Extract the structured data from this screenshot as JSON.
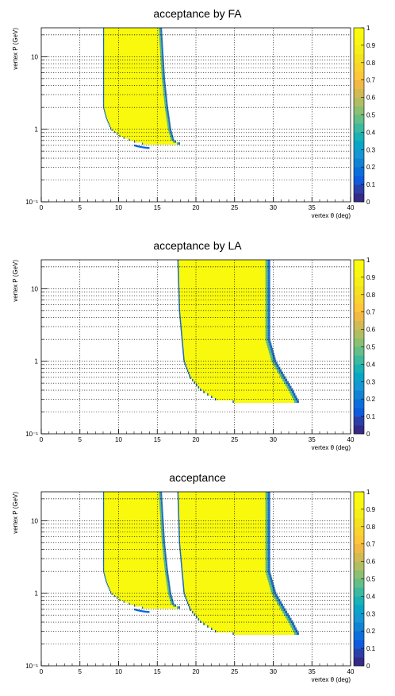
{
  "chart_data": [
    {
      "type": "heatmap",
      "title": "acceptance by FA",
      "xlabel": "vertex θ (deg)",
      "ylabel": "vertex P (GeV)",
      "xlim": [
        0,
        40
      ],
      "ylim": [
        0.1,
        25
      ],
      "yscale": "log",
      "x_ticks": [
        "0",
        "5",
        "10",
        "15",
        "20",
        "25",
        "30",
        "35",
        "40"
      ],
      "y_ticks": [
        "10⁻¹",
        "1",
        "10"
      ],
      "grid": true,
      "colorbar": {
        "min": 0,
        "max": 1,
        "ticks": [
          "0",
          "0.1",
          "0.2",
          "0.3",
          "0.4",
          "0.5",
          "0.6",
          "0.7",
          "0.8",
          "0.9",
          "1"
        ]
      },
      "regions": [
        {
          "label": "main",
          "value": 1.0,
          "theta_min": 8.0,
          "theta_max_edge": [
            [
              0.62,
              18.2
            ],
            [
              0.7,
              17.2
            ],
            [
              1.0,
              16.8
            ],
            [
              2.0,
              16.4
            ],
            [
              5.0,
              16.0
            ],
            [
              25,
              15.6
            ]
          ],
          "theta_min_edge": [
            [
              25,
              8.0
            ],
            [
              2.0,
              8.0
            ],
            [
              1.4,
              8.4
            ],
            [
              1.0,
              9.0
            ],
            [
              0.8,
              10.2
            ],
            [
              0.65,
              12.5
            ],
            [
              0.62,
              14.0
            ]
          ]
        },
        {
          "label": "lower-band",
          "value": 0.2,
          "theta_range": [
            12.0,
            14.0
          ],
          "p_range": [
            0.55,
            0.6
          ]
        }
      ]
    },
    {
      "type": "heatmap",
      "title": "acceptance by LA",
      "xlabel": "vertex θ (deg)",
      "ylabel": "vertex P (GeV)",
      "xlim": [
        0,
        40
      ],
      "ylim": [
        0.1,
        25
      ],
      "yscale": "log",
      "x_ticks": [
        "0",
        "5",
        "10",
        "15",
        "20",
        "25",
        "30",
        "35",
        "40"
      ],
      "y_ticks": [
        "10⁻¹",
        "1",
        "10"
      ],
      "grid": true,
      "colorbar": {
        "min": 0,
        "max": 1,
        "ticks": [
          "0",
          "0.1",
          "0.2",
          "0.3",
          "0.4",
          "0.5",
          "0.6",
          "0.7",
          "0.8",
          "0.9",
          "1"
        ]
      },
      "regions": [
        {
          "label": "main",
          "value": 1.0,
          "theta_max_edge": [
            [
              25,
              29.6
            ],
            [
              2.0,
              29.6
            ],
            [
              1.0,
              30.4
            ],
            [
              0.6,
              31.6
            ],
            [
              0.4,
              32.6
            ],
            [
              0.27,
              33.4
            ]
          ],
          "theta_min_edge": [
            [
              25,
              17.6
            ],
            [
              5.0,
              17.8
            ],
            [
              1.0,
              18.4
            ],
            [
              0.6,
              19.2
            ],
            [
              0.4,
              20.6
            ],
            [
              0.3,
              22.5
            ],
            [
              0.27,
              26.0
            ]
          ]
        }
      ]
    },
    {
      "type": "heatmap",
      "title": "acceptance",
      "xlabel": "vertex θ (deg)",
      "ylabel": "vertex P (GeV)",
      "xlim": [
        0,
        40
      ],
      "ylim": [
        0.1,
        25
      ],
      "yscale": "log",
      "x_ticks": [
        "0",
        "5",
        "10",
        "15",
        "20",
        "25",
        "30",
        "35",
        "40"
      ],
      "y_ticks": [
        "10⁻¹",
        "1",
        "10"
      ],
      "grid": true,
      "colorbar": {
        "min": 0,
        "max": 1,
        "ticks": [
          "0",
          "0.1",
          "0.2",
          "0.3",
          "0.4",
          "0.5",
          "0.6",
          "0.7",
          "0.8",
          "0.9",
          "1"
        ]
      },
      "regions": [
        {
          "label": "FA",
          "value": 1.0
        },
        {
          "label": "LA",
          "value": 1.0
        }
      ]
    }
  ]
}
